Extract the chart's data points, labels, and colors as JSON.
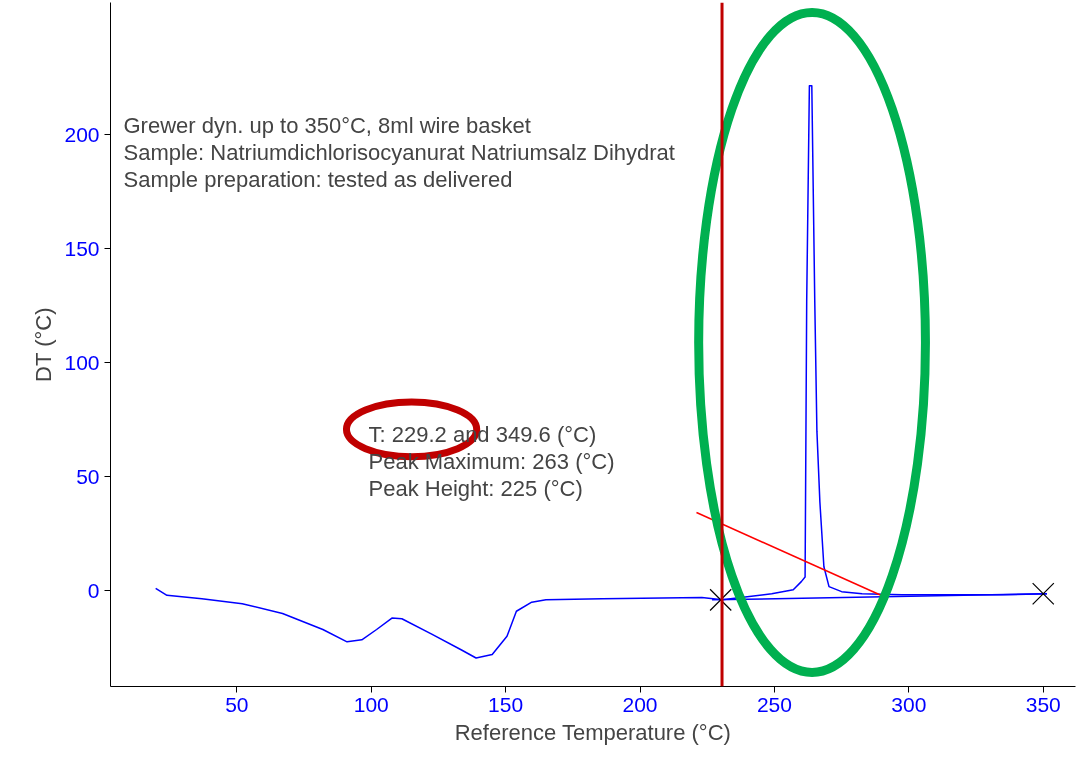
{
  "chart_data": {
    "type": "line",
    "xlabel": "Reference Temperature (°C)",
    "ylabel": "DT (°C)",
    "xlim": [
      3,
      362
    ],
    "ylim": [
      -42,
      258
    ],
    "xticks": [
      50,
      100,
      150,
      200,
      250,
      300,
      350
    ],
    "yticks": [
      0,
      50,
      100,
      150,
      200
    ],
    "grid": false,
    "marker": "none",
    "line_style": "solid",
    "series": [
      {
        "color": "#0000ff",
        "x": [
          19.8,
          24,
          37,
          52,
          67,
          82,
          91,
          96.5,
          102,
          107.7,
          111.4,
          122.5,
          133.6,
          139,
          145,
          150.5,
          154,
          159.7,
          165,
          186,
          223,
          230.5,
          249,
          257,
          260,
          261.4,
          262,
          263,
          263.9,
          265,
          265.8,
          266.9,
          268.4,
          270.3,
          275,
          282.6,
          297.4,
          334.7,
          351.4
        ],
        "values": [
          1,
          -2,
          -3.5,
          -5.7,
          -10,
          -17,
          -22.4,
          -21.5,
          -17,
          -12,
          -12.3,
          -19,
          -26,
          -29.5,
          -28,
          -20,
          -9,
          -5,
          -4,
          -3.5,
          -3,
          -4,
          -1.3,
          0.4,
          4,
          6,
          127,
          221.5,
          221.5,
          127,
          70,
          39,
          10.5,
          1.8,
          -0.4,
          -1.3,
          -1.8,
          -1.8,
          -1.3
        ]
      },
      {
        "color": "#0000ff",
        "x": [
          226.8,
          351.4
        ],
        "values": [
          -4,
          -1.3
        ]
      },
      {
        "color": "#ff0000",
        "x": [
          221,
          290
        ],
        "values": [
          34.3,
          -2.2
        ]
      },
      {
        "type": "scatter",
        "marker": "cross",
        "color": "#000000",
        "x": [
          230,
          350
        ],
        "values": [
          -4,
          -1.3
        ]
      }
    ],
    "ref_lines": [
      {
        "axis": "x",
        "value": 230.5,
        "label": null,
        "color": "#c00000"
      }
    ],
    "annotations": [
      "Grewer dyn. up to 350°C, 8ml wire basket",
      "Sample: Natriumdichlorisocyanurat Natriumsalz Dihydrat",
      "Sample preparation: tested as delivered",
      "T: 229.2 and 349.6 (°C)",
      "Peak Maximum:  263 (°C)",
      "Peak Height:  225 (°C)"
    ]
  }
}
